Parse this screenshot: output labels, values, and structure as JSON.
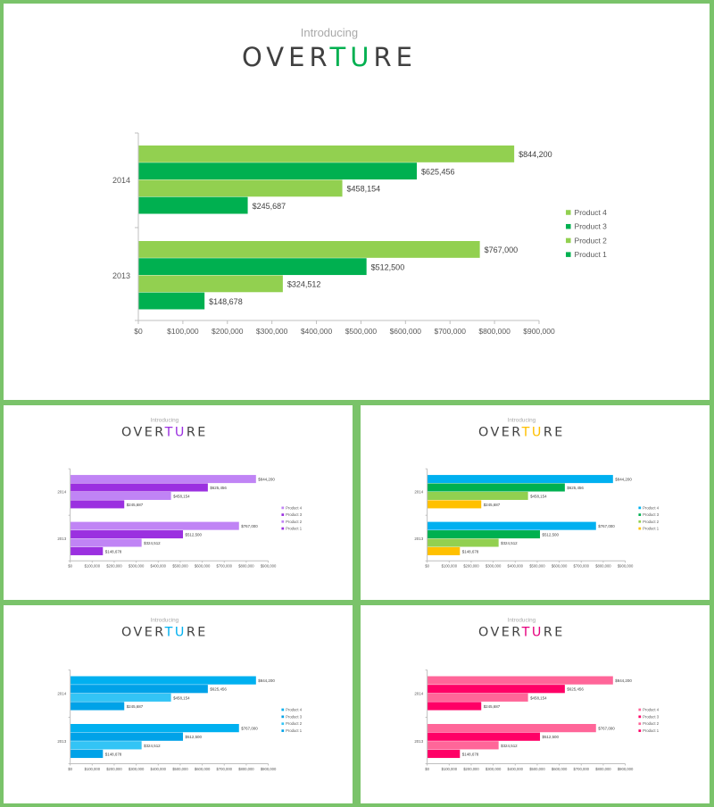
{
  "slide": {
    "intro": "Introducing",
    "brand_pre": "OVER",
    "brand_hl": "TU",
    "brand_post": "RE"
  },
  "chart_data": {
    "type": "bar",
    "orientation": "horizontal",
    "categories": [
      "2014",
      "2013"
    ],
    "series": [
      {
        "name": "Product 4",
        "values": [
          844200,
          767000
        ],
        "labels": [
          "$844,200",
          "$767,000"
        ]
      },
      {
        "name": "Product 3",
        "values": [
          625456,
          512500
        ],
        "labels": [
          "$625,456",
          "$512,500"
        ]
      },
      {
        "name": "Product 2",
        "values": [
          458154,
          324512
        ],
        "labels": [
          "$458,154",
          "$324,512"
        ]
      },
      {
        "name": "Product 1",
        "values": [
          245687,
          148678
        ],
        "labels": [
          "$245,687",
          "$148,678"
        ]
      }
    ],
    "xlim": [
      0,
      900000
    ],
    "xticks": [
      "$0",
      "$100,000",
      "$200,000",
      "$300,000",
      "$400,000",
      "$500,000",
      "$600,000",
      "$700,000",
      "$800,000",
      "$900,000"
    ],
    "legend_position": "right",
    "grid": false
  },
  "themes": [
    {
      "id": "green",
      "colors": [
        "#92d050",
        "#00b050",
        "#92d050",
        "#00b050"
      ],
      "legend_colors": [
        "#92d050",
        "#00b050",
        "#92d050",
        "#00b050"
      ],
      "accent": "#00b050"
    },
    {
      "id": "purple",
      "colors": [
        "#c084f5",
        "#9b30e0",
        "#c084f5",
        "#9b30e0"
      ],
      "legend_colors": [
        "#c084f5",
        "#9b30e0",
        "#c084f5",
        "#9b30e0"
      ],
      "accent": "#9b30e0"
    },
    {
      "id": "multi",
      "colors": [
        "#00b0f0",
        "#00b050",
        "#92d050",
        "#ffc000"
      ],
      "legend_colors": [
        "#00b0f0",
        "#00b050",
        "#92d050",
        "#ffc000"
      ],
      "accent": "#ffc000"
    },
    {
      "id": "blue",
      "colors": [
        "#00b0f0",
        "#00a2e8",
        "#33c4f5",
        "#00a2e8"
      ],
      "legend_colors": [
        "#00b0f0",
        "#00a2e8",
        "#33c4f5",
        "#00a2e8"
      ],
      "accent": "#00b0f0"
    },
    {
      "id": "pink",
      "colors": [
        "#ff6699",
        "#ff0066",
        "#ff6699",
        "#ff0066"
      ],
      "legend_colors": [
        "#ff6699",
        "#ff0066",
        "#ff6699",
        "#ff0066"
      ],
      "accent": "#e6007e"
    }
  ]
}
